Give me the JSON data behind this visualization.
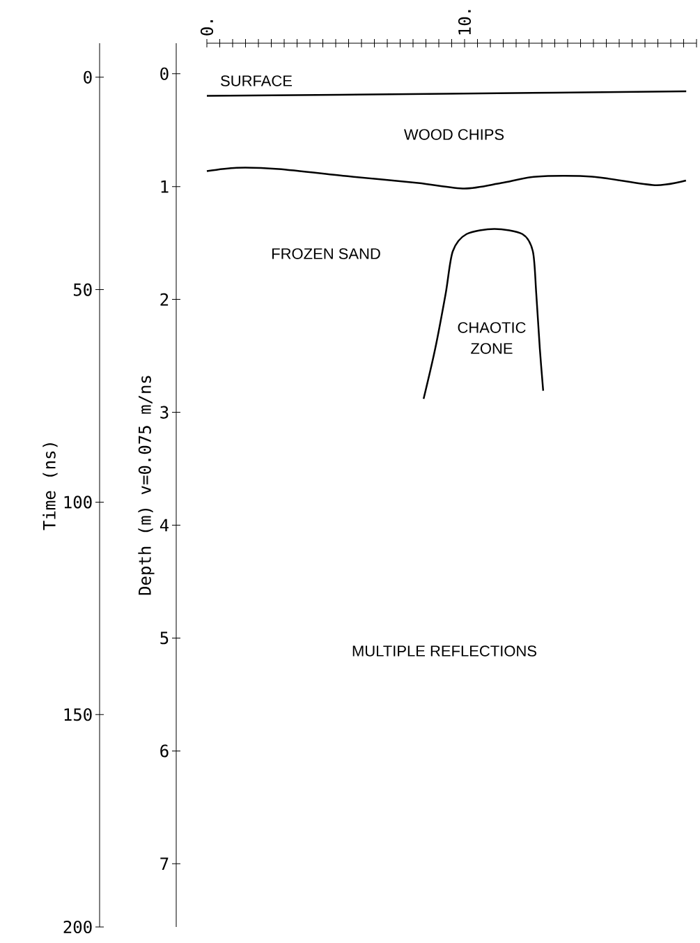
{
  "chart_data": {
    "type": "line",
    "ylabel": "Time (ns)",
    "y2label": "Depth (m)  v=0.075 m/ns",
    "xlim": [
      0,
      19
    ],
    "xticks": [
      {
        "value": 0,
        "label": "0."
      },
      {
        "value": 0.5,
        "label": null
      },
      {
        "value": 1,
        "label": null
      },
      {
        "value": 1.5,
        "label": null
      },
      {
        "value": 2,
        "label": null
      },
      {
        "value": 2.5,
        "label": null
      },
      {
        "value": 3,
        "label": null
      },
      {
        "value": 3.5,
        "label": null
      },
      {
        "value": 4,
        "label": null
      },
      {
        "value": 4.5,
        "label": null
      },
      {
        "value": 5,
        "label": null
      },
      {
        "value": 5.5,
        "label": null
      },
      {
        "value": 6,
        "label": null
      },
      {
        "value": 6.5,
        "label": null
      },
      {
        "value": 7,
        "label": null
      },
      {
        "value": 7.5,
        "label": null
      },
      {
        "value": 8,
        "label": null
      },
      {
        "value": 8.5,
        "label": null
      },
      {
        "value": 9,
        "label": null
      },
      {
        "value": 9.5,
        "label": null
      },
      {
        "value": 10,
        "label": "10."
      },
      {
        "value": 10.5,
        "label": null
      },
      {
        "value": 11,
        "label": null
      },
      {
        "value": 11.5,
        "label": null
      },
      {
        "value": 12,
        "label": null
      },
      {
        "value": 12.5,
        "label": null
      },
      {
        "value": 13,
        "label": null
      },
      {
        "value": 13.5,
        "label": null
      },
      {
        "value": 14,
        "label": null
      },
      {
        "value": 14.5,
        "label": null
      },
      {
        "value": 15,
        "label": null
      },
      {
        "value": 15.5,
        "label": null
      },
      {
        "value": 16,
        "label": null
      },
      {
        "value": 16.5,
        "label": null
      },
      {
        "value": 17,
        "label": null
      },
      {
        "value": 17.5,
        "label": null
      },
      {
        "value": 18,
        "label": null
      },
      {
        "value": 18.5,
        "label": null
      },
      {
        "value": 19,
        "label": null
      }
    ],
    "ylim": [
      200,
      -8
    ],
    "yticks": [
      0,
      50,
      100,
      150,
      200
    ],
    "y2lim": [
      7.56,
      -0.27
    ],
    "y2ticks": [
      0,
      1,
      2,
      3,
      4,
      5,
      6,
      7
    ],
    "marker": "none",
    "line_style": "solid",
    "series": [
      {
        "color": "#000000",
        "x": [
          0,
          9.3,
          18.6
        ],
        "values": [
          4.4,
          3.9,
          3.3
        ]
      },
      {
        "color": "#000000",
        "x": [
          0,
          1.16,
          2.78,
          5.46,
          8.19,
          10,
          11.43,
          12.78,
          14.95,
          17.38,
          18.59
        ],
        "values": [
          22.1,
          21.3,
          21.6,
          23.3,
          24.9,
          26.2,
          24.9,
          23.4,
          23.4,
          25.4,
          24.3
        ]
      },
      {
        "color": "#000000",
        "x": [
          8.41,
          8.86,
          9.27,
          9.54,
          10.08,
          11.16,
          12.24,
          12.65,
          12.78,
          12.92,
          13.05
        ],
        "values": [
          75.7,
          63.9,
          50.8,
          41.0,
          36.9,
          35.7,
          36.9,
          41.0,
          50.8,
          63.9,
          73.8
        ]
      }
    ],
    "annotations": [
      "SURFACE",
      "WOOD CHIPS",
      "FROZEN SAND",
      "CHAOTIC ZONE",
      "MULTIPLE REFLECTIONS"
    ]
  }
}
